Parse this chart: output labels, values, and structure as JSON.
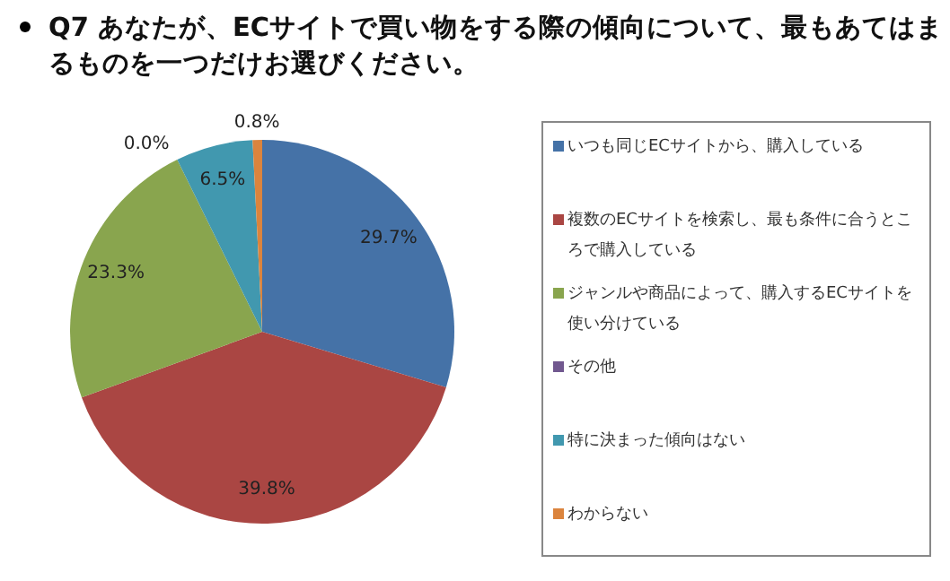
{
  "chart_data": {
    "type": "pie",
    "title": "Q7 あなたが、ECサイトで買い物をする際の傾向について、最もあてはまるものを一つだけお選びください。",
    "categories": [
      "いつも同じECサイトから、購入している",
      "複数のECサイトを検索し、最も条件に合うところで購入している",
      "ジャンルや商品によって、購入するECサイトを使い分けている",
      "その他",
      "特に決まった傾向はない",
      "わからない"
    ],
    "values": [
      29.7,
      39.8,
      23.3,
      0.0,
      6.5,
      0.8
    ],
    "colors": [
      "#4572a7",
      "#aa4643",
      "#89a54e",
      "#71588f",
      "#4198af",
      "#db843d"
    ],
    "value_labels": [
      "29.7%",
      "39.8%",
      "23.3%",
      "0.0%",
      "6.5%",
      "0.8%"
    ],
    "legend": "right"
  }
}
